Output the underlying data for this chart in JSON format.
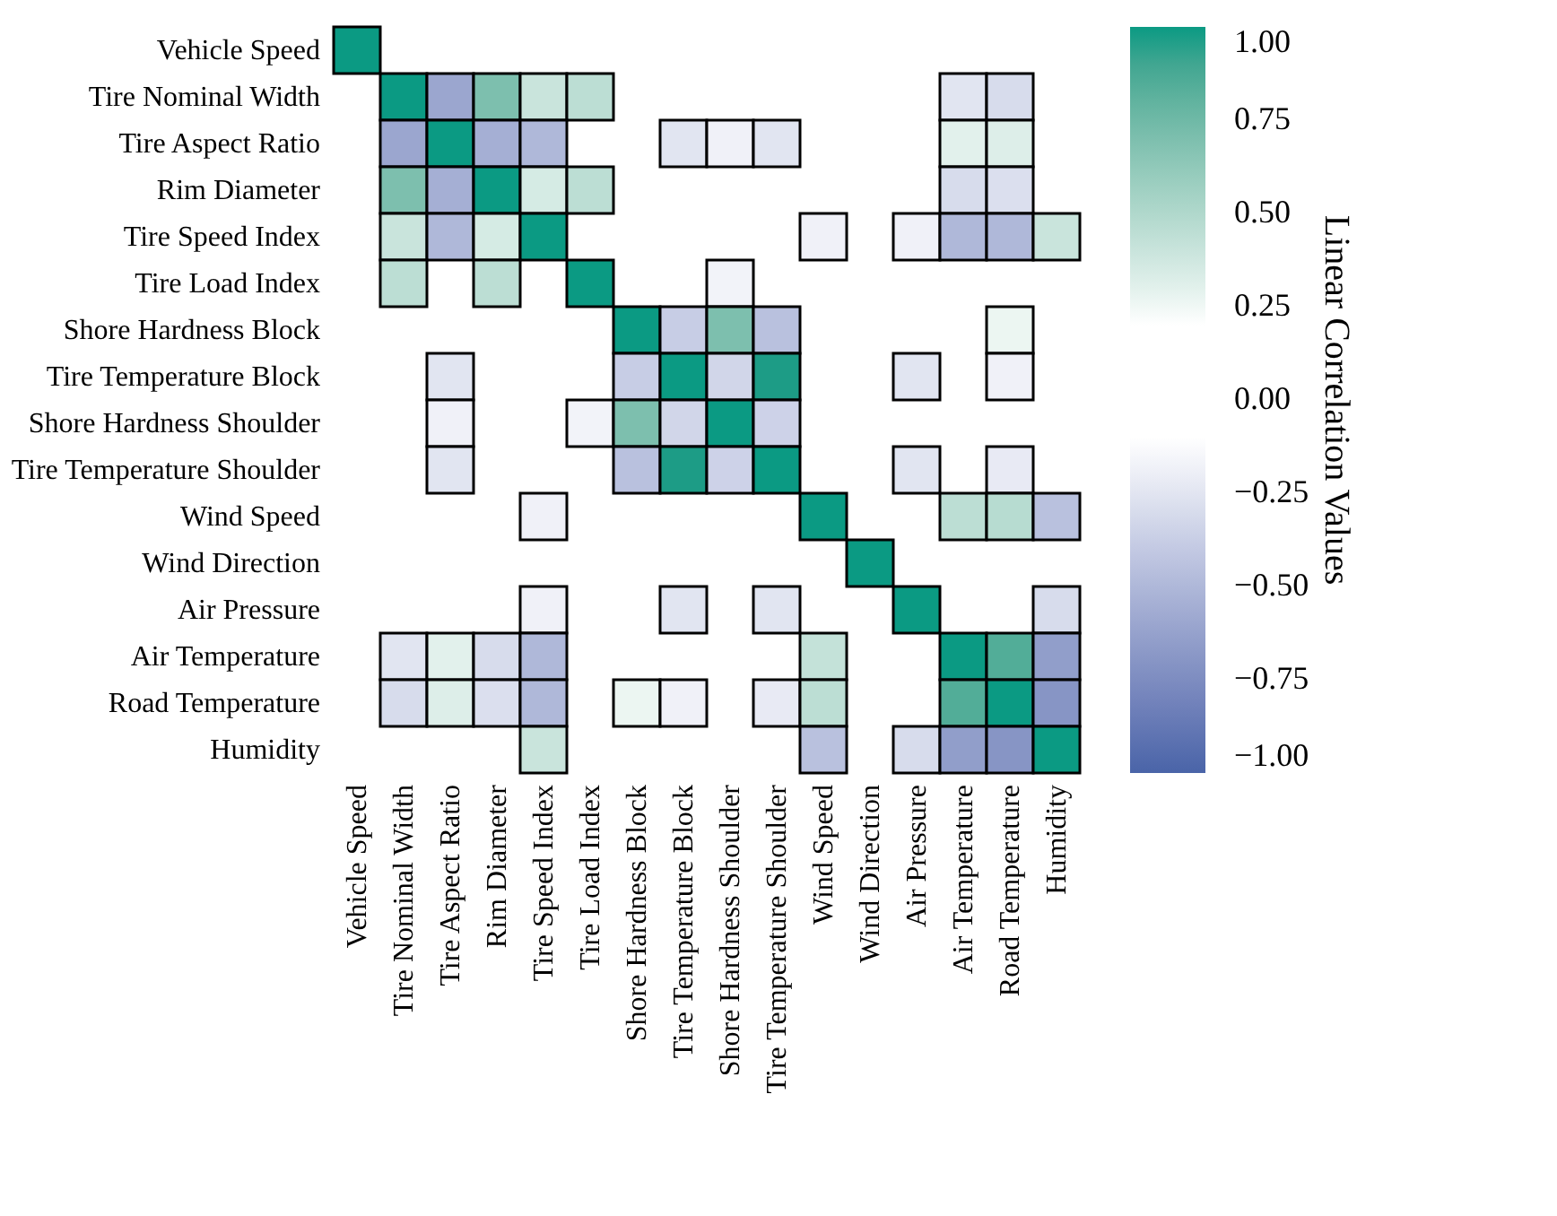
{
  "chart_data": {
    "type": "heatmap",
    "categories": [
      "Vehicle Speed",
      "Tire Nominal Width",
      "Tire Aspect Ratio",
      "Rim Diameter",
      "Tire Speed Index",
      "Tire Load Index",
      "Shore Hardness Block",
      "Tire Temperature Block",
      "Shore Hardness Shoulder",
      "Tire Temperature Shoulder",
      "Wind Speed",
      "Wind Direction",
      "Air Pressure",
      "Air Temperature",
      "Road Temperature",
      "Humidity"
    ],
    "y_categories": [
      "Vehicle Speed",
      "Tire Nominal Width",
      "Tire Aspect Ratio",
      "Rim Diameter",
      "Tire Speed Index",
      "Tire Load Index",
      "Shore Hardness Block",
      "Tire Temperature Block",
      "Shore Hardness Shoulder",
      "Tire Temperature Shoulder",
      "Wind Speed",
      "Wind Direction",
      "Air Pressure",
      "Air Temperature",
      "Road Temperature",
      "Humidity"
    ],
    "cells": [
      [
        1,
        null,
        null,
        null,
        null,
        null,
        null,
        null,
        null,
        null,
        null,
        null,
        null,
        null,
        null,
        null
      ],
      [
        null,
        1,
        -0.6,
        0.7,
        0.4,
        0.45,
        null,
        null,
        null,
        null,
        null,
        null,
        null,
        -0.25,
        -0.3,
        null
      ],
      [
        null,
        -0.6,
        1,
        -0.55,
        -0.5,
        null,
        null,
        -0.25,
        -0.18,
        -0.25,
        null,
        null,
        null,
        0.3,
        0.32,
        null
      ],
      [
        null,
        0.7,
        -0.55,
        1,
        0.35,
        0.45,
        null,
        null,
        null,
        null,
        null,
        null,
        null,
        -0.3,
        -0.28,
        null
      ],
      [
        null,
        0.4,
        -0.5,
        0.35,
        1,
        null,
        null,
        null,
        null,
        null,
        -0.18,
        null,
        -0.18,
        -0.5,
        -0.5,
        0.4
      ],
      [
        null,
        0.45,
        null,
        0.45,
        null,
        1,
        null,
        null,
        -0.17,
        null,
        null,
        null,
        null,
        null,
        null,
        null
      ],
      [
        null,
        null,
        null,
        null,
        null,
        null,
        1,
        -0.38,
        0.7,
        -0.45,
        null,
        null,
        null,
        null,
        0.26,
        null
      ],
      [
        null,
        null,
        -0.25,
        null,
        null,
        null,
        -0.38,
        1,
        -0.33,
        0.98,
        null,
        null,
        -0.25,
        null,
        -0.18,
        null
      ],
      [
        null,
        null,
        -0.18,
        null,
        null,
        -0.17,
        0.7,
        -0.33,
        1,
        -0.35,
        null,
        null,
        null,
        null,
        null,
        null
      ],
      [
        null,
        null,
        -0.25,
        null,
        null,
        null,
        -0.45,
        0.98,
        -0.35,
        1,
        null,
        null,
        -0.25,
        null,
        -0.22,
        null
      ],
      [
        null,
        null,
        null,
        null,
        -0.18,
        null,
        null,
        null,
        null,
        null,
        1,
        null,
        null,
        0.45,
        0.47,
        -0.45
      ],
      [
        null,
        null,
        null,
        null,
        null,
        null,
        null,
        null,
        null,
        null,
        null,
        1,
        null,
        null,
        null,
        null
      ],
      [
        null,
        null,
        null,
        null,
        -0.18,
        null,
        null,
        -0.25,
        null,
        -0.25,
        null,
        null,
        1,
        null,
        null,
        -0.3
      ],
      [
        null,
        -0.25,
        0.3,
        -0.3,
        -0.5,
        null,
        null,
        null,
        null,
        null,
        0.42,
        null,
        null,
        1,
        0.85,
        -0.65
      ],
      [
        null,
        -0.3,
        0.32,
        -0.28,
        -0.5,
        null,
        0.26,
        -0.18,
        null,
        -0.22,
        0.45,
        null,
        null,
        0.85,
        1,
        -0.7
      ],
      [
        null,
        null,
        null,
        null,
        0.4,
        null,
        null,
        null,
        null,
        null,
        -0.45,
        null,
        -0.3,
        -0.65,
        -0.7,
        1
      ]
    ],
    "clabel": "Linear Correlation Values",
    "clim": [
      -1,
      1
    ],
    "cticks": [
      {
        "value": 1,
        "label": "1.00"
      },
      {
        "value": 0.75,
        "label": "0.75"
      },
      {
        "value": 0.5,
        "label": "0.50"
      },
      {
        "value": 0.25,
        "label": "0.25"
      },
      {
        "value": 0,
        "label": "0.00"
      },
      {
        "value": -0.25,
        "label": "−0.25"
      },
      {
        "value": -0.5,
        "label": "−0.50"
      },
      {
        "value": -0.75,
        "label": "−0.75"
      },
      {
        "value": -1,
        "label": "−1.00"
      }
    ]
  }
}
